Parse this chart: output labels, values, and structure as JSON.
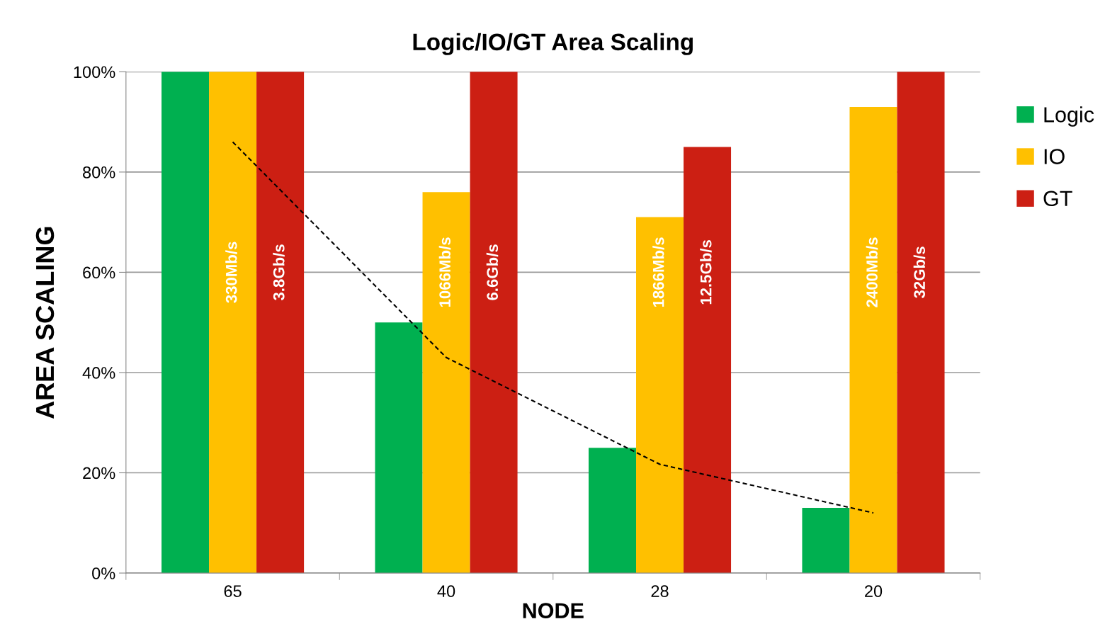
{
  "chart_data": {
    "type": "bar",
    "title": "Logic/IO/GT Area Scaling",
    "xlabel": "NODE",
    "ylabel": "AREA SCALING",
    "categories": [
      "65",
      "40",
      "28",
      "20"
    ],
    "series": [
      {
        "name": "Logic",
        "color": "#00b050",
        "values": [
          100,
          50,
          25,
          13
        ]
      },
      {
        "name": "IO",
        "color": "#ffc000",
        "values": [
          100,
          76,
          71,
          93
        ]
      },
      {
        "name": "GT",
        "color": "#cc1f13",
        "values": [
          100,
          100,
          85,
          100
        ]
      },
      {
        "type": "line",
        "color": "#000000",
        "line_style": "dashed",
        "values": [
          86,
          43,
          21.7,
          12
        ]
      }
    ],
    "ylim": [
      0,
      100
    ],
    "yticks": [
      {
        "value": 0,
        "label": "0%"
      },
      {
        "value": 20,
        "label": "20%"
      },
      {
        "value": 40,
        "label": "40%"
      },
      {
        "value": 60,
        "label": "60%"
      },
      {
        "value": 80,
        "label": "80%"
      },
      {
        "value": 100,
        "label": "100%"
      }
    ],
    "annotations": [
      "330Mb/s",
      "3.8Gb/s",
      "1066Mb/s",
      "6.6Gb/s",
      "1866Mb/s",
      "12.5Gb/s",
      "2400Mb/s",
      "32Gb/s"
    ],
    "grid": "y",
    "legend": "right"
  }
}
